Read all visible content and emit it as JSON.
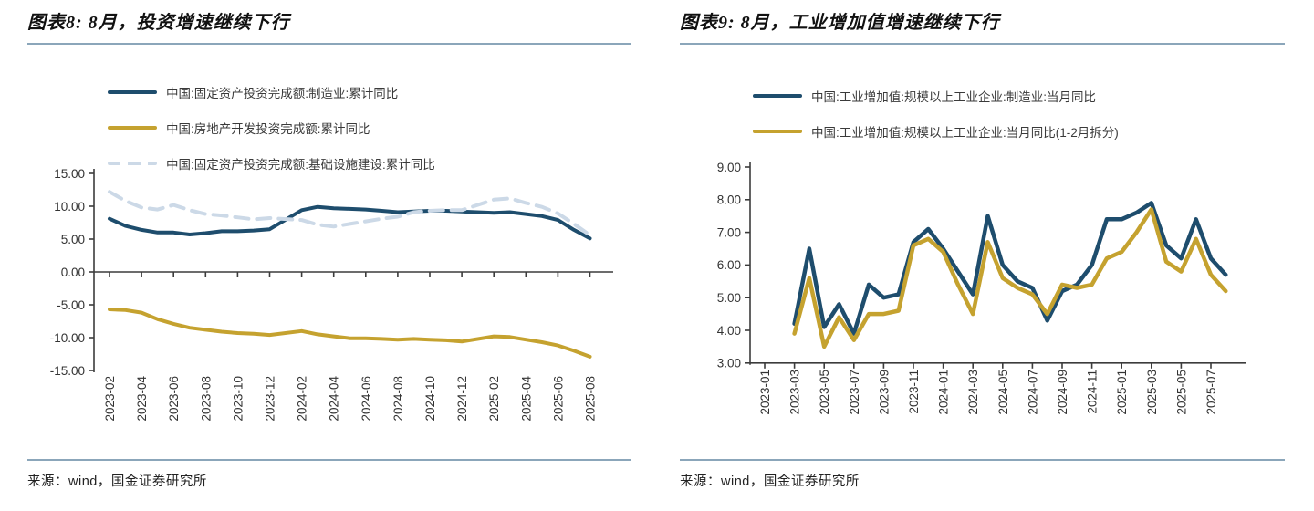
{
  "charts": [
    {
      "title": "图表8: 8月，投资增速继续下行",
      "source": "来源：wind，国金证券研究所",
      "chart_data": {
        "type": "line",
        "x_timeline_start": "2023-01",
        "x_tick_indices": [
          1,
          3,
          5,
          7,
          9,
          11,
          13,
          15,
          17,
          19,
          21,
          23,
          25,
          27,
          29,
          31
        ],
        "x_tick_labels": [
          "2023-02",
          "2023-04",
          "2023-06",
          "2023-08",
          "2023-10",
          "2023-12",
          "2024-02",
          "2024-04",
          "2024-06",
          "2024-08",
          "2024-10",
          "2024-12",
          "2025-02",
          "2025-04",
          "2025-06",
          "2025-08"
        ],
        "y_ticks": [
          {
            "v": 15,
            "label": "15.00"
          },
          {
            "v": 10,
            "label": "10.00"
          },
          {
            "v": 5,
            "label": "5.00"
          },
          {
            "v": 0,
            "label": "0.00"
          },
          {
            "v": -5,
            "label": "-5.00"
          },
          {
            "v": -10,
            "label": "-10.00"
          },
          {
            "v": -15,
            "label": "-15.00"
          }
        ],
        "ylim": [
          -15,
          15
        ],
        "baseline_value": 0,
        "grid": false,
        "legend_position": "top-left",
        "series": [
          {
            "name": "中国:固定资产投资完成额:制造业:累计同比",
            "color": "#1e4d6d",
            "dash": false,
            "points": [
              [
                1,
                8.1
              ],
              [
                2,
                7.0
              ],
              [
                3,
                6.4
              ],
              [
                4,
                6.0
              ],
              [
                5,
                6.0
              ],
              [
                6,
                5.7
              ],
              [
                7,
                5.9
              ],
              [
                8,
                6.2
              ],
              [
                9,
                6.2
              ],
              [
                10,
                6.3
              ],
              [
                11,
                6.5
              ],
              [
                13,
                9.4
              ],
              [
                14,
                9.9
              ],
              [
                15,
                9.7
              ],
              [
                16,
                9.6
              ],
              [
                17,
                9.5
              ],
              [
                18,
                9.3
              ],
              [
                19,
                9.1
              ],
              [
                20,
                9.2
              ],
              [
                21,
                9.3
              ],
              [
                22,
                9.3
              ],
              [
                23,
                9.2
              ],
              [
                25,
                9.0
              ],
              [
                26,
                9.1
              ],
              [
                27,
                8.8
              ],
              [
                28,
                8.5
              ],
              [
                29,
                7.9
              ],
              [
                30,
                6.4
              ],
              [
                31,
                5.1
              ]
            ]
          },
          {
            "name": "中国:房地产开发投资完成额:累计同比",
            "color": "#c5a22f",
            "dash": false,
            "points": [
              [
                1,
                -5.7
              ],
              [
                2,
                -5.8
              ],
              [
                3,
                -6.2
              ],
              [
                4,
                -7.2
              ],
              [
                5,
                -7.9
              ],
              [
                6,
                -8.5
              ],
              [
                7,
                -8.8
              ],
              [
                8,
                -9.1
              ],
              [
                9,
                -9.3
              ],
              [
                10,
                -9.4
              ],
              [
                11,
                -9.6
              ],
              [
                13,
                -9.0
              ],
              [
                14,
                -9.5
              ],
              [
                15,
                -9.8
              ],
              [
                16,
                -10.1
              ],
              [
                17,
                -10.1
              ],
              [
                18,
                -10.2
              ],
              [
                19,
                -10.3
              ],
              [
                20,
                -10.2
              ],
              [
                21,
                -10.3
              ],
              [
                22,
                -10.4
              ],
              [
                23,
                -10.6
              ],
              [
                25,
                -9.8
              ],
              [
                26,
                -9.9
              ],
              [
                27,
                -10.3
              ],
              [
                28,
                -10.7
              ],
              [
                29,
                -11.2
              ],
              [
                30,
                -12.0
              ],
              [
                31,
                -12.9
              ]
            ]
          },
          {
            "name": "中国:固定资产投资完成额:基础设施建设:累计同比",
            "color": "#ccd9e7",
            "dash": true,
            "points": [
              [
                1,
                12.2
              ],
              [
                2,
                10.8
              ],
              [
                3,
                9.8
              ],
              [
                4,
                9.5
              ],
              [
                5,
                10.2
              ],
              [
                6,
                9.4
              ],
              [
                7,
                8.8
              ],
              [
                8,
                8.6
              ],
              [
                9,
                8.3
              ],
              [
                10,
                8.0
              ],
              [
                11,
                8.2
              ],
              [
                13,
                7.9
              ],
              [
                14,
                7.2
              ],
              [
                15,
                6.9
              ],
              [
                16,
                7.3
              ],
              [
                17,
                7.7
              ],
              [
                18,
                8.1
              ],
              [
                19,
                8.4
              ],
              [
                20,
                9.1
              ],
              [
                21,
                9.3
              ],
              [
                22,
                9.4
              ],
              [
                23,
                9.4
              ],
              [
                25,
                11.0
              ],
              [
                26,
                11.2
              ],
              [
                27,
                10.5
              ],
              [
                28,
                9.9
              ],
              [
                29,
                8.9
              ],
              [
                30,
                7.3
              ],
              [
                31,
                5.6
              ]
            ]
          }
        ]
      }
    },
    {
      "title": "图表9: 8月，工业增加值增速继续下行",
      "source": "来源：wind，国金证券研究所",
      "chart_data": {
        "type": "line",
        "x_timeline_start": "2023-01",
        "x_tick_indices": [
          0,
          2,
          4,
          6,
          8,
          10,
          12,
          14,
          16,
          18,
          20,
          22,
          24,
          26,
          28,
          30
        ],
        "x_tick_labels": [
          "2023-01",
          "2023-03",
          "2023-05",
          "2023-07",
          "2023-09",
          "2023-11",
          "2024-01",
          "2024-03",
          "2024-05",
          "2024-07",
          "2024-09",
          "2024-11",
          "2025-01",
          "2025-03",
          "2025-05",
          "2025-07"
        ],
        "y_ticks": [
          {
            "v": 9,
            "label": "9.00"
          },
          {
            "v": 8,
            "label": "8.00"
          },
          {
            "v": 7,
            "label": "7.00"
          },
          {
            "v": 6,
            "label": "6.00"
          },
          {
            "v": 5,
            "label": "5.00"
          },
          {
            "v": 4,
            "label": "4.00"
          },
          {
            "v": 3,
            "label": "3.00"
          }
        ],
        "ylim": [
          3,
          9
        ],
        "baseline_value": 3,
        "grid": false,
        "legend_position": "top-left",
        "series": [
          {
            "name": "中国:工业增加值:规模以上工业企业:制造业:当月同比",
            "color": "#1e4d6d",
            "dash": false,
            "points": [
              [
                2,
                4.2
              ],
              [
                3,
                6.5
              ],
              [
                4,
                4.1
              ],
              [
                5,
                4.8
              ],
              [
                6,
                3.9
              ],
              [
                7,
                5.4
              ],
              [
                8,
                5.0
              ],
              [
                9,
                5.1
              ],
              [
                10,
                6.7
              ],
              [
                11,
                7.1
              ],
              [
                12,
                6.5
              ],
              [
                13,
                5.8
              ],
              [
                14,
                5.1
              ],
              [
                15,
                7.5
              ],
              [
                16,
                6.0
              ],
              [
                17,
                5.5
              ],
              [
                18,
                5.3
              ],
              [
                19,
                4.3
              ],
              [
                20,
                5.2
              ],
              [
                21,
                5.4
              ],
              [
                22,
                6.0
              ],
              [
                23,
                7.4
              ],
              [
                24,
                7.4
              ],
              [
                25,
                7.6
              ],
              [
                26,
                7.9
              ],
              [
                27,
                6.6
              ],
              [
                28,
                6.2
              ],
              [
                29,
                7.4
              ],
              [
                30,
                6.2
              ],
              [
                31,
                5.7
              ]
            ]
          },
          {
            "name": "中国:工业增加值:规模以上工业企业:当月同比(1-2月拆分)",
            "color": "#c5a22f",
            "dash": false,
            "points": [
              [
                2,
                3.9
              ],
              [
                3,
                5.6
              ],
              [
                4,
                3.5
              ],
              [
                5,
                4.4
              ],
              [
                6,
                3.7
              ],
              [
                7,
                4.5
              ],
              [
                8,
                4.5
              ],
              [
                9,
                4.6
              ],
              [
                10,
                6.6
              ],
              [
                11,
                6.8
              ],
              [
                12,
                6.4
              ],
              [
                13,
                5.4
              ],
              [
                14,
                4.5
              ],
              [
                15,
                6.7
              ],
              [
                16,
                5.6
              ],
              [
                17,
                5.3
              ],
              [
                18,
                5.1
              ],
              [
                19,
                4.5
              ],
              [
                20,
                5.4
              ],
              [
                21,
                5.3
              ],
              [
                22,
                5.4
              ],
              [
                23,
                6.2
              ],
              [
                24,
                6.4
              ],
              [
                25,
                7.0
              ],
              [
                26,
                7.7
              ],
              [
                27,
                6.1
              ],
              [
                28,
                5.8
              ],
              [
                29,
                6.8
              ],
              [
                30,
                5.7
              ],
              [
                31,
                5.2
              ]
            ]
          }
        ]
      }
    }
  ]
}
